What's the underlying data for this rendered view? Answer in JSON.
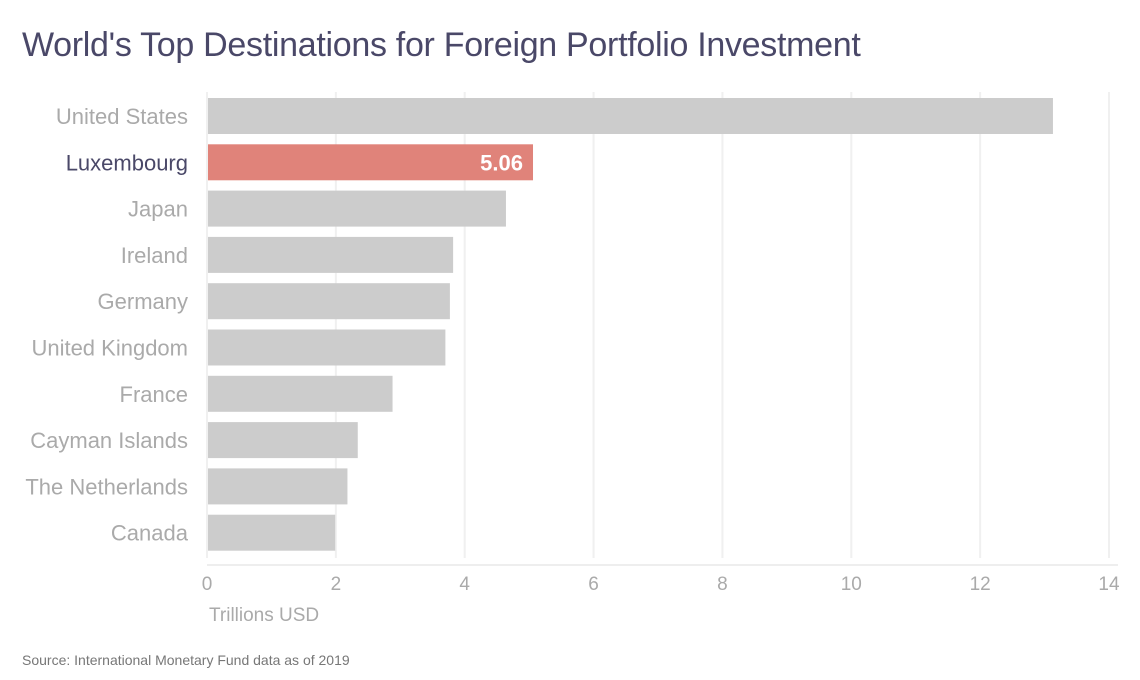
{
  "chart_data": {
    "type": "bar",
    "orientation": "horizontal",
    "title": "World's Top Destinations for Foreign Portfolio Investment",
    "xlabel": "Trillions USD",
    "ylabel": "",
    "xlim": [
      0,
      14
    ],
    "xticks": [
      0,
      2,
      4,
      6,
      8,
      10,
      12,
      14
    ],
    "grid": true,
    "categories": [
      "United States",
      "Luxembourg",
      "Japan",
      "Ireland",
      "Germany",
      "United Kingdom",
      "France",
      "Cayman Islands",
      "The Netherlands",
      "Canada"
    ],
    "values": [
      13.13,
      5.06,
      4.64,
      3.82,
      3.77,
      3.7,
      2.88,
      2.34,
      2.18,
      1.99
    ],
    "highlight": {
      "category": "Luxembourg",
      "label": "5.06"
    },
    "source": "Source: International Monetary Fund data as of 2019"
  },
  "colors": {
    "bar": "#cccccc",
    "highlight": "#e0837a",
    "title": "#4a4868",
    "grid": "#f0f0f0"
  }
}
